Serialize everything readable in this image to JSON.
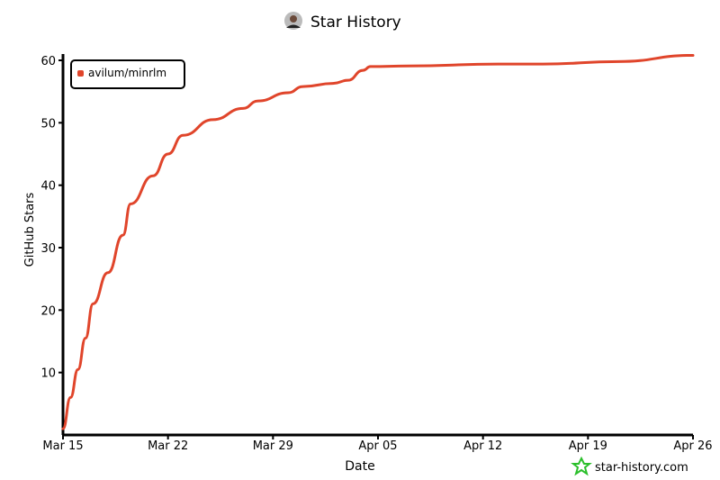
{
  "chart_data": {
    "type": "line",
    "title": "Star History",
    "xlabel": "Date",
    "ylabel": "GitHub Stars",
    "x_ticks": [
      "Mar 15",
      "Mar 22",
      "Mar 29",
      "Apr 05",
      "Apr 12",
      "Apr 19",
      "Apr 26"
    ],
    "y_ticks": [
      10,
      20,
      30,
      40,
      50,
      60
    ],
    "ylim": [
      0,
      61
    ],
    "legend_position": "top-left",
    "grid": false,
    "series": [
      {
        "name": "avilum/minrlm",
        "color": "#e0452b",
        "points": [
          [
            "Mar 15",
            1
          ],
          [
            "Mar 15",
            6
          ],
          [
            "Mar 16",
            10.5
          ],
          [
            "Mar 16",
            15.5
          ],
          [
            "Mar 17",
            21
          ],
          [
            "Mar 18",
            26
          ],
          [
            "Mar 19",
            32
          ],
          [
            "Mar 19",
            37
          ],
          [
            "Mar 21",
            41.5
          ],
          [
            "Mar 22",
            45
          ],
          [
            "Mar 23",
            48
          ],
          [
            "Mar 25",
            50.5
          ],
          [
            "Mar 27",
            52.3
          ],
          [
            "Mar 28",
            53.5
          ],
          [
            "Mar 30",
            54.8
          ],
          [
            "Mar 31",
            55.8
          ],
          [
            "Apr 02",
            56.3
          ],
          [
            "Apr 03",
            56.8
          ],
          [
            "Apr 04",
            58.4
          ],
          [
            "Apr 04",
            59
          ],
          [
            "Apr 07",
            59.1
          ],
          [
            "Apr 13",
            59.4
          ],
          [
            "Apr 16",
            59.4
          ],
          [
            "Apr 21",
            59.8
          ],
          [
            "Apr 26",
            60.8
          ]
        ]
      }
    ]
  },
  "watermark": "star-history.com"
}
